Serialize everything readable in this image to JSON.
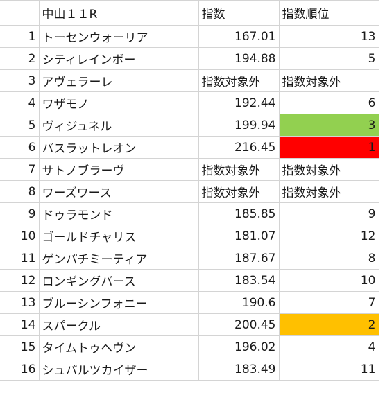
{
  "header": {
    "race": "中山１１R",
    "index": "指数",
    "rank": "指数順位"
  },
  "rows": [
    {
      "no": "1",
      "name": "トーセンウォーリア",
      "index": "167.01",
      "rank": "13"
    },
    {
      "no": "2",
      "name": "シティレインボー",
      "index": "194.88",
      "rank": "5"
    },
    {
      "no": "3",
      "name": "アヴェラーレ",
      "index": "指数対象外",
      "rank": "指数対象外"
    },
    {
      "no": "4",
      "name": "ワザモノ",
      "index": "192.44",
      "rank": "6"
    },
    {
      "no": "5",
      "name": "ヴィジュネル",
      "index": "199.94",
      "rank": "3"
    },
    {
      "no": "6",
      "name": "バスラットレオン",
      "index": "216.45",
      "rank": "1"
    },
    {
      "no": "7",
      "name": "サトノブラーヴ",
      "index": "指数対象外",
      "rank": "指数対象外"
    },
    {
      "no": "8",
      "name": "ワーズワース",
      "index": "指数対象外",
      "rank": "指数対象外"
    },
    {
      "no": "9",
      "name": "ドゥラモンド",
      "index": "185.85",
      "rank": "9"
    },
    {
      "no": "10",
      "name": "ゴールドチャリス",
      "index": "181.07",
      "rank": "12"
    },
    {
      "no": "11",
      "name": "ゲンパチミーティア",
      "index": "187.67",
      "rank": "8"
    },
    {
      "no": "12",
      "name": "ロンギングバース",
      "index": "183.54",
      "rank": "10"
    },
    {
      "no": "13",
      "name": "ブルーシンフォニー",
      "index": "190.6",
      "rank": "7"
    },
    {
      "no": "14",
      "name": "スパークル",
      "index": "200.45",
      "rank": "2"
    },
    {
      "no": "15",
      "name": "タイムトゥヘヴン",
      "index": "196.02",
      "rank": "4"
    },
    {
      "no": "16",
      "name": "シュバルツカイザー",
      "index": "183.49",
      "rank": "11"
    }
  ],
  "highlight_colors": {
    "rank_1": "#ff0000",
    "rank_2": "#ffc000",
    "rank_3": "#92d050"
  }
}
